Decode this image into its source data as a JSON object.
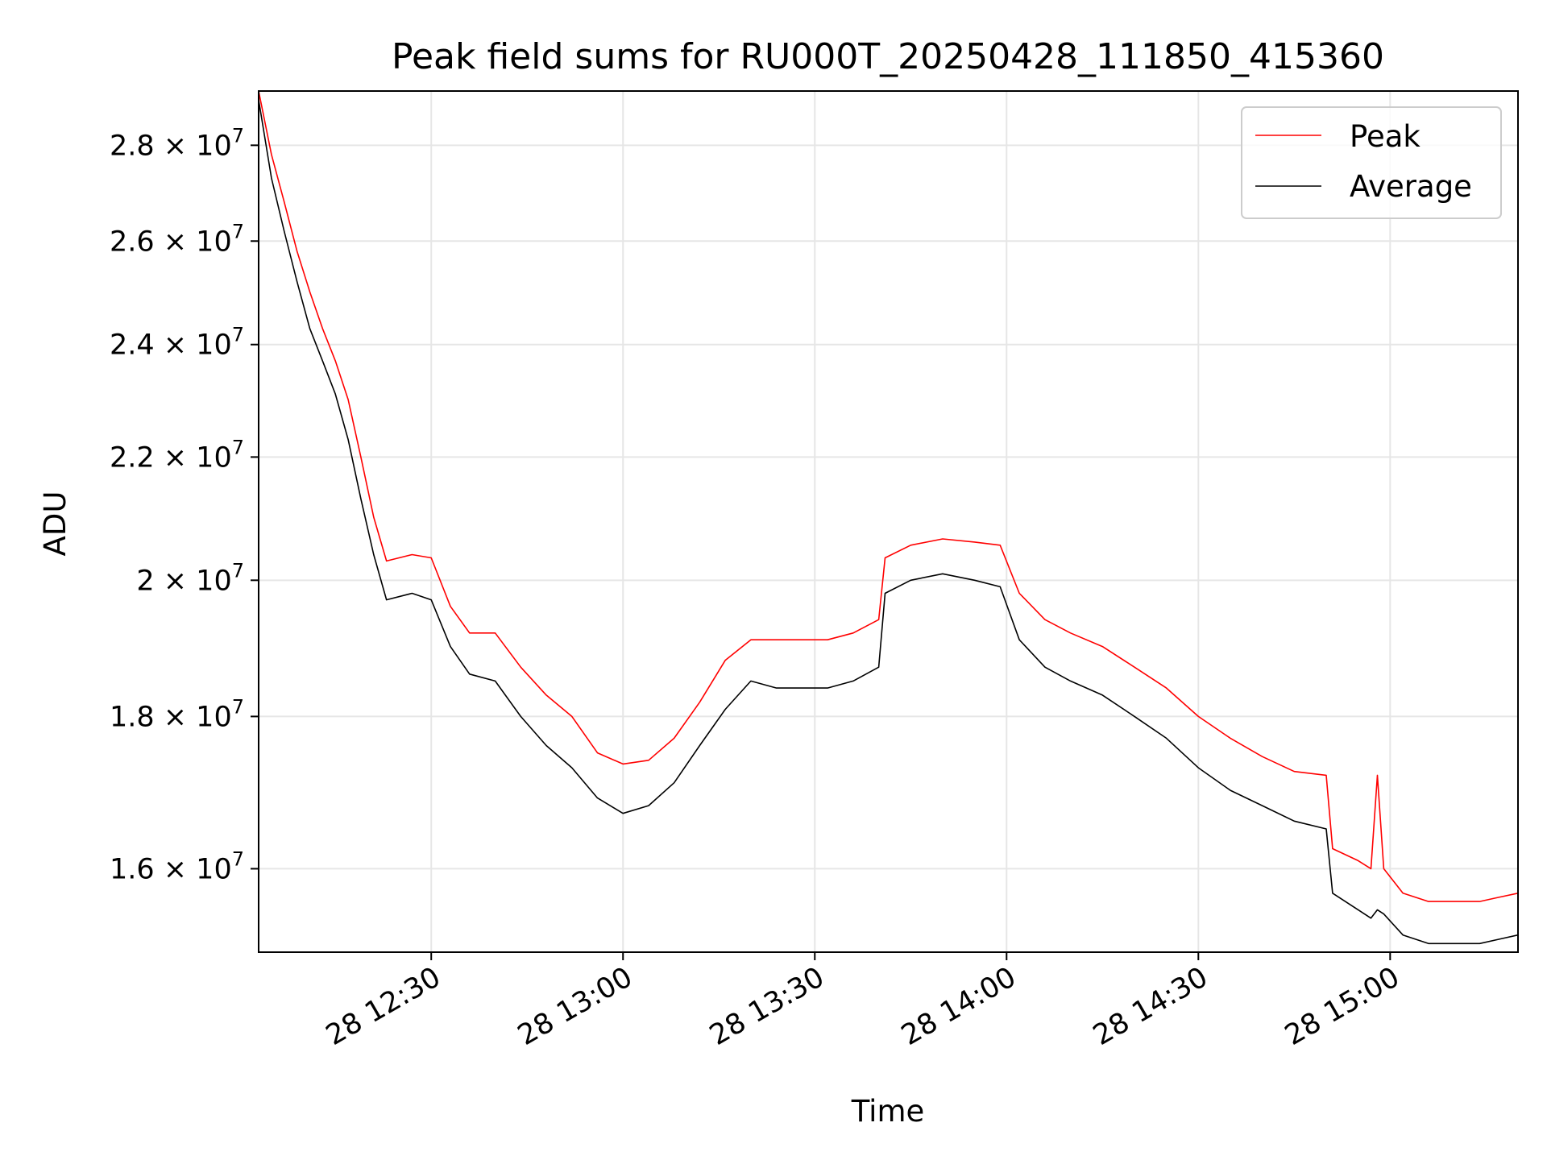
{
  "chart_data": {
    "type": "line",
    "title": "Peak field sums for RU000T_20250428_111850_415360",
    "xlabel": "Time",
    "ylabel": "ADU",
    "y_scale": "log",
    "xlim": [
      "2025-04-28 12:03",
      "2025-04-28 15:20"
    ],
    "ylim": [
      15000000,
      29200000
    ],
    "grid": true,
    "legend_position": "upper right",
    "x_ticks": [
      {
        "value": "2025-04-28 12:30",
        "label": "28 12:30"
      },
      {
        "value": "2025-04-28 13:00",
        "label": "28 13:00"
      },
      {
        "value": "2025-04-28 13:30",
        "label": "28 13:30"
      },
      {
        "value": "2025-04-28 14:00",
        "label": "28 14:00"
      },
      {
        "value": "2025-04-28 14:30",
        "label": "28 14:30"
      },
      {
        "value": "2025-04-28 15:00",
        "label": "28 15:00"
      }
    ],
    "y_ticks": [
      {
        "value": 16000000,
        "mantissa": "1.6",
        "exponent": "7"
      },
      {
        "value": 18000000,
        "mantissa": "1.8",
        "exponent": "7"
      },
      {
        "value": 20000000,
        "mantissa": "2",
        "exponent": "7"
      },
      {
        "value": 22000000,
        "mantissa": "2.2",
        "exponent": "7"
      },
      {
        "value": 24000000,
        "mantissa": "2.4",
        "exponent": "7"
      },
      {
        "value": 26000000,
        "mantissa": "2.6",
        "exponent": "7"
      },
      {
        "value": 28000000,
        "mantissa": "2.8",
        "exponent": "7"
      }
    ],
    "series": [
      {
        "name": "Peak",
        "color": "#ff0000",
        "x": [
          "2025-04-28 12:03",
          "2025-04-28 12:05",
          "2025-04-28 12:07",
          "2025-04-28 12:09",
          "2025-04-28 12:11",
          "2025-04-28 12:13",
          "2025-04-28 12:15",
          "2025-04-28 12:17",
          "2025-04-28 12:19",
          "2025-04-28 12:21",
          "2025-04-28 12:23",
          "2025-04-28 12:27",
          "2025-04-28 12:30",
          "2025-04-28 12:33",
          "2025-04-28 12:36",
          "2025-04-28 12:40",
          "2025-04-28 12:44",
          "2025-04-28 12:48",
          "2025-04-28 12:52",
          "2025-04-28 12:56",
          "2025-04-28 13:00",
          "2025-04-28 13:04",
          "2025-04-28 13:08",
          "2025-04-28 13:12",
          "2025-04-28 13:16",
          "2025-04-28 13:20",
          "2025-04-28 13:24",
          "2025-04-28 13:28",
          "2025-04-28 13:32",
          "2025-04-28 13:36",
          "2025-04-28 13:40",
          "2025-04-28 13:41",
          "2025-04-28 13:45",
          "2025-04-28 13:50",
          "2025-04-28 13:55",
          "2025-04-28 13:59",
          "2025-04-28 14:02",
          "2025-04-28 14:06",
          "2025-04-28 14:10",
          "2025-04-28 14:15",
          "2025-04-28 14:20",
          "2025-04-28 14:25",
          "2025-04-28 14:30",
          "2025-04-28 14:35",
          "2025-04-28 14:40",
          "2025-04-28 14:45",
          "2025-04-28 14:50",
          "2025-04-28 14:51",
          "2025-04-28 14:55",
          "2025-04-28 14:57",
          "2025-04-28 14:58",
          "2025-04-28 14:59",
          "2025-04-28 15:02",
          "2025-04-28 15:06",
          "2025-04-28 15:10",
          "2025-04-28 15:14",
          "2025-04-28 15:17",
          "2025-04-28 15:20"
        ],
        "y": [
          29200000,
          27800000,
          26800000,
          25800000,
          25000000,
          24300000,
          23700000,
          23000000,
          22000000,
          21000000,
          20300000,
          20400000,
          20350000,
          19600000,
          19200000,
          19200000,
          18700000,
          18300000,
          18000000,
          17500000,
          17350000,
          17400000,
          17700000,
          18200000,
          18800000,
          19100000,
          19100000,
          19100000,
          19100000,
          19200000,
          19400000,
          20350000,
          20550000,
          20650000,
          20600000,
          20550000,
          19800000,
          19400000,
          19200000,
          19000000,
          18700000,
          18400000,
          18000000,
          17700000,
          17450000,
          17250000,
          17200000,
          16250000,
          16100000,
          16000000,
          17200000,
          16000000,
          15700000,
          15600000,
          15600000,
          15600000,
          15650000,
          15700000
        ]
      },
      {
        "name": "Average",
        "color": "#000000",
        "x": [
          "2025-04-28 12:03",
          "2025-04-28 12:05",
          "2025-04-28 12:07",
          "2025-04-28 12:09",
          "2025-04-28 12:11",
          "2025-04-28 12:13",
          "2025-04-28 12:15",
          "2025-04-28 12:17",
          "2025-04-28 12:19",
          "2025-04-28 12:21",
          "2025-04-28 12:23",
          "2025-04-28 12:27",
          "2025-04-28 12:30",
          "2025-04-28 12:33",
          "2025-04-28 12:36",
          "2025-04-28 12:40",
          "2025-04-28 12:44",
          "2025-04-28 12:48",
          "2025-04-28 12:52",
          "2025-04-28 12:56",
          "2025-04-28 13:00",
          "2025-04-28 13:04",
          "2025-04-28 13:08",
          "2025-04-28 13:12",
          "2025-04-28 13:16",
          "2025-04-28 13:20",
          "2025-04-28 13:24",
          "2025-04-28 13:28",
          "2025-04-28 13:32",
          "2025-04-28 13:36",
          "2025-04-28 13:40",
          "2025-04-28 13:41",
          "2025-04-28 13:45",
          "2025-04-28 13:50",
          "2025-04-28 13:55",
          "2025-04-28 13:59",
          "2025-04-28 14:02",
          "2025-04-28 14:06",
          "2025-04-28 14:10",
          "2025-04-28 14:15",
          "2025-04-28 14:20",
          "2025-04-28 14:25",
          "2025-04-28 14:30",
          "2025-04-28 14:35",
          "2025-04-28 14:40",
          "2025-04-28 14:45",
          "2025-04-28 14:50",
          "2025-04-28 14:51",
          "2025-04-28 14:55",
          "2025-04-28 14:57",
          "2025-04-28 14:58",
          "2025-04-28 14:59",
          "2025-04-28 15:02",
          "2025-04-28 15:06",
          "2025-04-28 15:10",
          "2025-04-28 15:14",
          "2025-04-28 15:17",
          "2025-04-28 15:20"
        ],
        "y": [
          29000000,
          27300000,
          26200000,
          25200000,
          24300000,
          23700000,
          23100000,
          22300000,
          21300000,
          20400000,
          19700000,
          19800000,
          19700000,
          19000000,
          18600000,
          18500000,
          18000000,
          17600000,
          17300000,
          16900000,
          16700000,
          16800000,
          17100000,
          17600000,
          18100000,
          18500000,
          18400000,
          18400000,
          18400000,
          18500000,
          18700000,
          19800000,
          20000000,
          20100000,
          20000000,
          19900000,
          19100000,
          18700000,
          18500000,
          18300000,
          18000000,
          17700000,
          17300000,
          17000000,
          16800000,
          16600000,
          16500000,
          15700000,
          15500000,
          15400000,
          15500000,
          15450000,
          15200000,
          15100000,
          15100000,
          15100000,
          15150000,
          15200000
        ]
      }
    ]
  }
}
